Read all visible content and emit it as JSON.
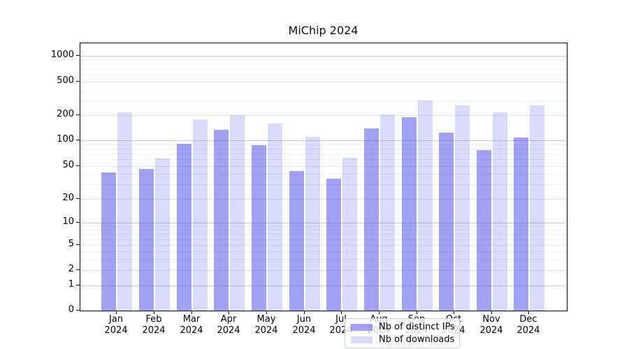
{
  "chart_data": {
    "type": "bar",
    "title": "MiChip 2024",
    "categories": [
      "Jan",
      "Feb",
      "Mar",
      "Apr",
      "May",
      "Jun",
      "Jul",
      "Aug",
      "Sep",
      "Oct",
      "Nov",
      "Dec"
    ],
    "category_year": "2024",
    "series": [
      {
        "name": "Nb of distinct IPs",
        "color": "rgba(85,85,235,0.55)",
        "values": [
          42,
          46,
          91,
          134,
          88,
          44,
          35,
          138,
          187,
          123,
          77,
          108
        ]
      },
      {
        "name": "Nb of downloads",
        "color": "rgba(85,85,235,0.22)",
        "values": [
          215,
          62,
          177,
          200,
          159,
          110,
          63,
          204,
          300,
          260,
          214,
          262
        ]
      }
    ],
    "yscale": "symlog",
    "yticks": [
      0,
      1,
      2,
      5,
      10,
      20,
      50,
      100,
      200,
      500,
      1000
    ],
    "ylim": [
      0,
      1400
    ],
    "grid": true,
    "legend": {
      "position": "lower-center"
    }
  }
}
